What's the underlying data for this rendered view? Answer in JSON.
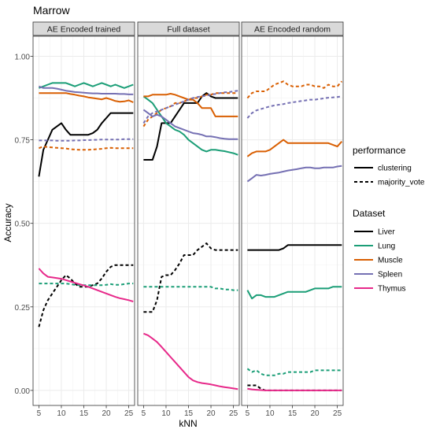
{
  "chart_data": {
    "type": "line",
    "title": "Marrow",
    "xlabel": "kNN",
    "ylabel": "Accuracy",
    "xlim": [
      3.7,
      26.3
    ],
    "ylim": [
      -0.045,
      1.06
    ],
    "x_ticks": [
      5,
      10,
      15,
      20,
      25
    ],
    "y_ticks": [
      0.0,
      0.25,
      0.5,
      0.75,
      1.0
    ],
    "y_tick_labels": [
      "0.00",
      "0.25",
      "0.50",
      "0.75",
      "1.00"
    ],
    "x": [
      5,
      6,
      7,
      8,
      9,
      10,
      11,
      12,
      13,
      14,
      15,
      16,
      17,
      18,
      19,
      20,
      21,
      22,
      23,
      24,
      25,
      26
    ],
    "grid": true,
    "legend_position": "right",
    "colors": {
      "Liver": "#000000",
      "Lung": "#1b9e77",
      "Muscle": "#d95f02",
      "Spleen": "#7570b3",
      "Thymus": "#e7298a"
    },
    "legends": {
      "performance": {
        "title": "performance",
        "entries": [
          {
            "label": "clustering",
            "style": "solid"
          },
          {
            "label": "majority_vote",
            "style": "dashed"
          }
        ]
      },
      "dataset": {
        "title": "Dataset",
        "entries": [
          {
            "label": "Liver",
            "color": "#000000"
          },
          {
            "label": "Lung",
            "color": "#1b9e77"
          },
          {
            "label": "Muscle",
            "color": "#d95f02"
          },
          {
            "label": "Spleen",
            "color": "#7570b3"
          },
          {
            "label": "Thymus",
            "color": "#e7298a"
          }
        ]
      }
    },
    "facets": [
      {
        "label": "AE Encoded trained",
        "series": [
          {
            "dataset": "Liver",
            "performance": "clustering",
            "values": [
              0.64,
              0.72,
              0.75,
              0.78,
              0.79,
              0.8,
              0.78,
              0.765,
              0.765,
              0.765,
              0.765,
              0.765,
              0.77,
              0.78,
              0.8,
              0.815,
              0.83,
              0.83,
              0.83,
              0.83,
              0.83,
              0.83
            ]
          },
          {
            "dataset": "Liver",
            "performance": "majority_vote",
            "values": [
              0.19,
              0.24,
              0.27,
              0.29,
              0.31,
              0.33,
              0.345,
              0.335,
              0.32,
              0.31,
              0.31,
              0.31,
              0.315,
              0.32,
              0.335,
              0.355,
              0.37,
              0.375,
              0.375,
              0.375,
              0.375,
              0.375
            ]
          },
          {
            "dataset": "Lung",
            "performance": "clustering",
            "values": [
              0.905,
              0.91,
              0.915,
              0.92,
              0.92,
              0.92,
              0.92,
              0.915,
              0.91,
              0.915,
              0.92,
              0.915,
              0.91,
              0.915,
              0.92,
              0.915,
              0.91,
              0.915,
              0.91,
              0.905,
              0.91,
              0.915
            ]
          },
          {
            "dataset": "Lung",
            "performance": "majority_vote",
            "values": [
              0.32,
              0.32,
              0.32,
              0.32,
              0.32,
              0.32,
              0.32,
              0.318,
              0.316,
              0.315,
              0.315,
              0.315,
              0.315,
              0.315,
              0.315,
              0.316,
              0.318,
              0.316,
              0.316,
              0.318,
              0.32,
              0.32
            ]
          },
          {
            "dataset": "Muscle",
            "performance": "clustering",
            "values": [
              0.89,
              0.89,
              0.89,
              0.89,
              0.89,
              0.89,
              0.89,
              0.887,
              0.885,
              0.882,
              0.88,
              0.877,
              0.875,
              0.873,
              0.871,
              0.875,
              0.871,
              0.866,
              0.864,
              0.865,
              0.868,
              0.862
            ]
          },
          {
            "dataset": "Muscle",
            "performance": "majority_vote",
            "values": [
              0.725,
              0.73,
              0.728,
              0.727,
              0.726,
              0.725,
              0.724,
              0.722,
              0.721,
              0.72,
              0.72,
              0.72,
              0.721,
              0.722,
              0.723,
              0.725,
              0.726,
              0.725,
              0.725,
              0.725,
              0.725,
              0.725
            ]
          },
          {
            "dataset": "Spleen",
            "performance": "clustering",
            "values": [
              0.91,
              0.905,
              0.905,
              0.905,
              0.903,
              0.9,
              0.897,
              0.895,
              0.893,
              0.892,
              0.891,
              0.89,
              0.889,
              0.889,
              0.888,
              0.888,
              0.888,
              0.888,
              0.887,
              0.887,
              0.886,
              0.886
            ]
          },
          {
            "dataset": "Spleen",
            "performance": "majority_vote",
            "values": [
              0.748,
              0.748,
              0.748,
              0.748,
              0.747,
              0.747,
              0.747,
              0.747,
              0.748,
              0.748,
              0.749,
              0.749,
              0.75,
              0.75,
              0.751,
              0.751,
              0.751,
              0.751,
              0.751,
              0.752,
              0.752,
              0.752
            ]
          },
          {
            "dataset": "Thymus",
            "performance": "clustering",
            "values": [
              0.365,
              0.35,
              0.34,
              0.338,
              0.336,
              0.334,
              0.33,
              0.326,
              0.322,
              0.318,
              0.314,
              0.31,
              0.305,
              0.3,
              0.295,
              0.29,
              0.285,
              0.28,
              0.276,
              0.273,
              0.27,
              0.266
            ]
          }
        ]
      },
      {
        "label": "Full dataset",
        "series": [
          {
            "dataset": "Liver",
            "performance": "clustering",
            "values": [
              0.69,
              0.69,
              0.69,
              0.73,
              0.8,
              0.8,
              0.8,
              0.82,
              0.84,
              0.86,
              0.86,
              0.86,
              0.86,
              0.88,
              0.89,
              0.88,
              0.875,
              0.875,
              0.875,
              0.875,
              0.875,
              0.875
            ]
          },
          {
            "dataset": "Liver",
            "performance": "majority_vote",
            "values": [
              0.235,
              0.235,
              0.235,
              0.27,
              0.34,
              0.345,
              0.345,
              0.36,
              0.38,
              0.405,
              0.405,
              0.405,
              0.42,
              0.43,
              0.44,
              0.425,
              0.42,
              0.42,
              0.42,
              0.42,
              0.42,
              0.42
            ]
          },
          {
            "dataset": "Lung",
            "performance": "clustering",
            "values": [
              0.88,
              0.87,
              0.86,
              0.84,
              0.82,
              0.8,
              0.79,
              0.78,
              0.775,
              0.765,
              0.75,
              0.74,
              0.73,
              0.72,
              0.715,
              0.72,
              0.72,
              0.718,
              0.716,
              0.713,
              0.71,
              0.705
            ]
          },
          {
            "dataset": "Lung",
            "performance": "majority_vote",
            "values": [
              0.31,
              0.31,
              0.31,
              0.31,
              0.31,
              0.31,
              0.31,
              0.31,
              0.31,
              0.31,
              0.31,
              0.31,
              0.31,
              0.31,
              0.31,
              0.31,
              0.305,
              0.305,
              0.302,
              0.302,
              0.3,
              0.3
            ]
          },
          {
            "dataset": "Muscle",
            "performance": "clustering",
            "values": [
              0.88,
              0.88,
              0.885,
              0.885,
              0.885,
              0.885,
              0.888,
              0.885,
              0.88,
              0.875,
              0.87,
              0.87,
              0.86,
              0.845,
              0.845,
              0.845,
              0.82,
              0.82,
              0.82,
              0.82,
              0.82,
              0.82
            ]
          },
          {
            "dataset": "Muscle",
            "performance": "majority_vote",
            "values": [
              0.79,
              0.81,
              0.82,
              0.83,
              0.84,
              0.845,
              0.85,
              0.86,
              0.86,
              0.865,
              0.87,
              0.875,
              0.875,
              0.88,
              0.885,
              0.885,
              0.89,
              0.89,
              0.89,
              0.89,
              0.89,
              0.89
            ]
          },
          {
            "dataset": "Spleen",
            "performance": "clustering",
            "values": [
              0.84,
              0.83,
              0.82,
              0.825,
              0.82,
              0.81,
              0.8,
              0.79,
              0.785,
              0.78,
              0.775,
              0.77,
              0.768,
              0.765,
              0.76,
              0.76,
              0.758,
              0.755,
              0.753,
              0.752,
              0.752,
              0.752
            ]
          },
          {
            "dataset": "Spleen",
            "performance": "majority_vote",
            "values": [
              0.8,
              0.82,
              0.83,
              0.835,
              0.84,
              0.845,
              0.85,
              0.855,
              0.86,
              0.865,
              0.87,
              0.875,
              0.878,
              0.88,
              0.882,
              0.885,
              0.887,
              0.89,
              0.892,
              0.893,
              0.895,
              0.897
            ]
          },
          {
            "dataset": "Thymus",
            "performance": "clustering",
            "values": [
              0.17,
              0.165,
              0.155,
              0.145,
              0.13,
              0.115,
              0.1,
              0.085,
              0.07,
              0.055,
              0.04,
              0.03,
              0.025,
              0.022,
              0.02,
              0.018,
              0.015,
              0.012,
              0.01,
              0.008,
              0.006,
              0.004
            ]
          }
        ]
      },
      {
        "label": "AE Encoded random",
        "series": [
          {
            "dataset": "Liver",
            "performance": "clustering",
            "values": [
              0.42,
              0.42,
              0.42,
              0.42,
              0.42,
              0.42,
              0.42,
              0.42,
              0.425,
              0.435,
              0.435,
              0.435,
              0.435,
              0.435,
              0.435,
              0.435,
              0.435,
              0.435,
              0.435,
              0.435,
              0.435,
              0.435
            ]
          },
          {
            "dataset": "Liver",
            "performance": "majority_vote",
            "values": [
              0.015,
              0.015,
              0.015,
              0.005,
              0.0,
              0.0,
              0.0,
              0.0,
              0.0,
              0.0,
              0.0,
              0.0,
              0.0,
              0.0,
              0.0,
              0.0,
              0.0,
              0.0,
              0.0,
              0.0,
              0.0,
              0.0
            ]
          },
          {
            "dataset": "Lung",
            "performance": "clustering",
            "values": [
              0.3,
              0.275,
              0.285,
              0.285,
              0.28,
              0.28,
              0.28,
              0.285,
              0.29,
              0.295,
              0.295,
              0.295,
              0.295,
              0.295,
              0.3,
              0.305,
              0.305,
              0.305,
              0.305,
              0.31,
              0.31,
              0.31
            ]
          },
          {
            "dataset": "Lung",
            "performance": "majority_vote",
            "values": [
              0.065,
              0.055,
              0.06,
              0.05,
              0.045,
              0.045,
              0.045,
              0.05,
              0.05,
              0.055,
              0.055,
              0.055,
              0.055,
              0.055,
              0.055,
              0.06,
              0.06,
              0.06,
              0.06,
              0.06,
              0.06,
              0.06
            ]
          },
          {
            "dataset": "Muscle",
            "performance": "clustering",
            "values": [
              0.7,
              0.71,
              0.715,
              0.715,
              0.715,
              0.72,
              0.73,
              0.74,
              0.75,
              0.74,
              0.74,
              0.74,
              0.74,
              0.74,
              0.74,
              0.74,
              0.74,
              0.74,
              0.74,
              0.735,
              0.73,
              0.745
            ]
          },
          {
            "dataset": "Muscle",
            "performance": "majority_vote",
            "values": [
              0.875,
              0.89,
              0.895,
              0.895,
              0.895,
              0.905,
              0.915,
              0.92,
              0.925,
              0.915,
              0.91,
              0.91,
              0.91,
              0.915,
              0.915,
              0.91,
              0.91,
              0.905,
              0.915,
              0.91,
              0.91,
              0.925
            ]
          },
          {
            "dataset": "Spleen",
            "performance": "clustering",
            "values": [
              0.625,
              0.635,
              0.645,
              0.643,
              0.645,
              0.648,
              0.65,
              0.652,
              0.655,
              0.658,
              0.66,
              0.662,
              0.665,
              0.667,
              0.667,
              0.665,
              0.665,
              0.667,
              0.667,
              0.667,
              0.67,
              0.672
            ]
          },
          {
            "dataset": "Spleen",
            "performance": "majority_vote",
            "values": [
              0.815,
              0.83,
              0.838,
              0.842,
              0.846,
              0.85,
              0.853,
              0.855,
              0.857,
              0.86,
              0.862,
              0.864,
              0.866,
              0.868,
              0.87,
              0.87,
              0.872,
              0.874,
              0.876,
              0.877,
              0.878,
              0.88
            ]
          },
          {
            "dataset": "Thymus",
            "performance": "clustering",
            "values": [
              0.005,
              0.003,
              0.002,
              0.001,
              0.0,
              0.0,
              0.0,
              0.0,
              0.0,
              0.0,
              0.0,
              0.0,
              0.0,
              0.0,
              0.0,
              0.0,
              0.0,
              0.0,
              0.0,
              0.0,
              0.0,
              0.0
            ]
          }
        ]
      }
    ]
  }
}
